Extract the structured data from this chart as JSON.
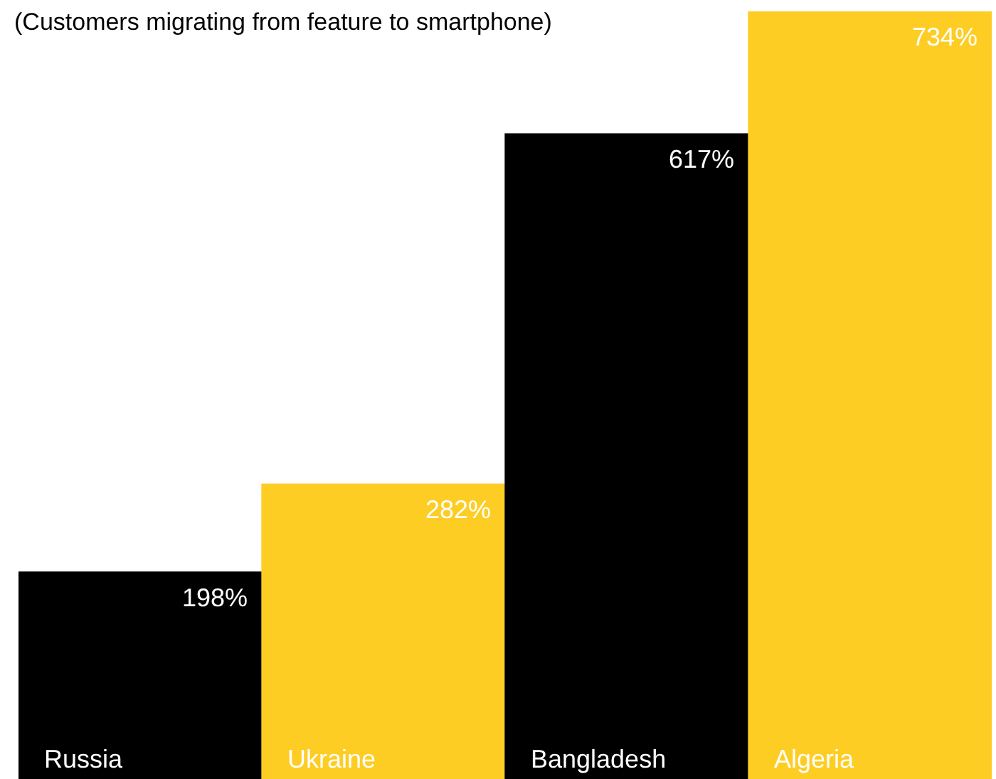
{
  "chart_data": {
    "type": "bar",
    "title": "(Customers migrating from feature to smartphone)",
    "categories": [
      "Russia",
      "Ukraine",
      "Bangladesh",
      "Algeria"
    ],
    "values": [
      198,
      282,
      617,
      734
    ],
    "colors": [
      "#000000",
      "#fecd24",
      "#000000",
      "#fecd24"
    ],
    "value_labels": [
      "198%",
      "282%",
      "617%",
      "734%"
    ],
    "legend": false
  }
}
